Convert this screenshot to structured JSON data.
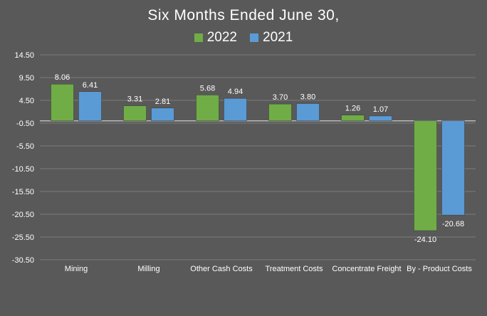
{
  "chart_data": {
    "type": "bar",
    "title": "Six Months Ended June 30,",
    "categories": [
      "Mining",
      "Milling",
      "Other Cash Costs",
      "Treatment Costs",
      "Concentrate Freight",
      "By - Product Costs"
    ],
    "series": [
      {
        "name": "2022",
        "color": "#70ad47",
        "values": [
          8.06,
          3.31,
          5.68,
          3.7,
          1.26,
          -24.1
        ],
        "labels": [
          "8.06",
          "3.31",
          "5.68",
          "3.70",
          "1.26",
          "-24.10"
        ]
      },
      {
        "name": "2021",
        "color": "#5b9bd5",
        "values": [
          6.41,
          2.81,
          4.94,
          3.8,
          1.07,
          -20.68
        ],
        "labels": [
          "6.41",
          "2.81",
          "4.94",
          "3.80",
          "1.07",
          "-20.68"
        ]
      }
    ],
    "y_ticks": [
      "14.50",
      "9.50",
      "4.50",
      "-0.50",
      "-5.50",
      "-10.50",
      "-15.50",
      "-20.50",
      "-25.50",
      "-30.50"
    ],
    "ylim": [
      -30.5,
      14.5
    ],
    "grid": true,
    "legend_position": "top-center",
    "background_color": "#595959"
  }
}
